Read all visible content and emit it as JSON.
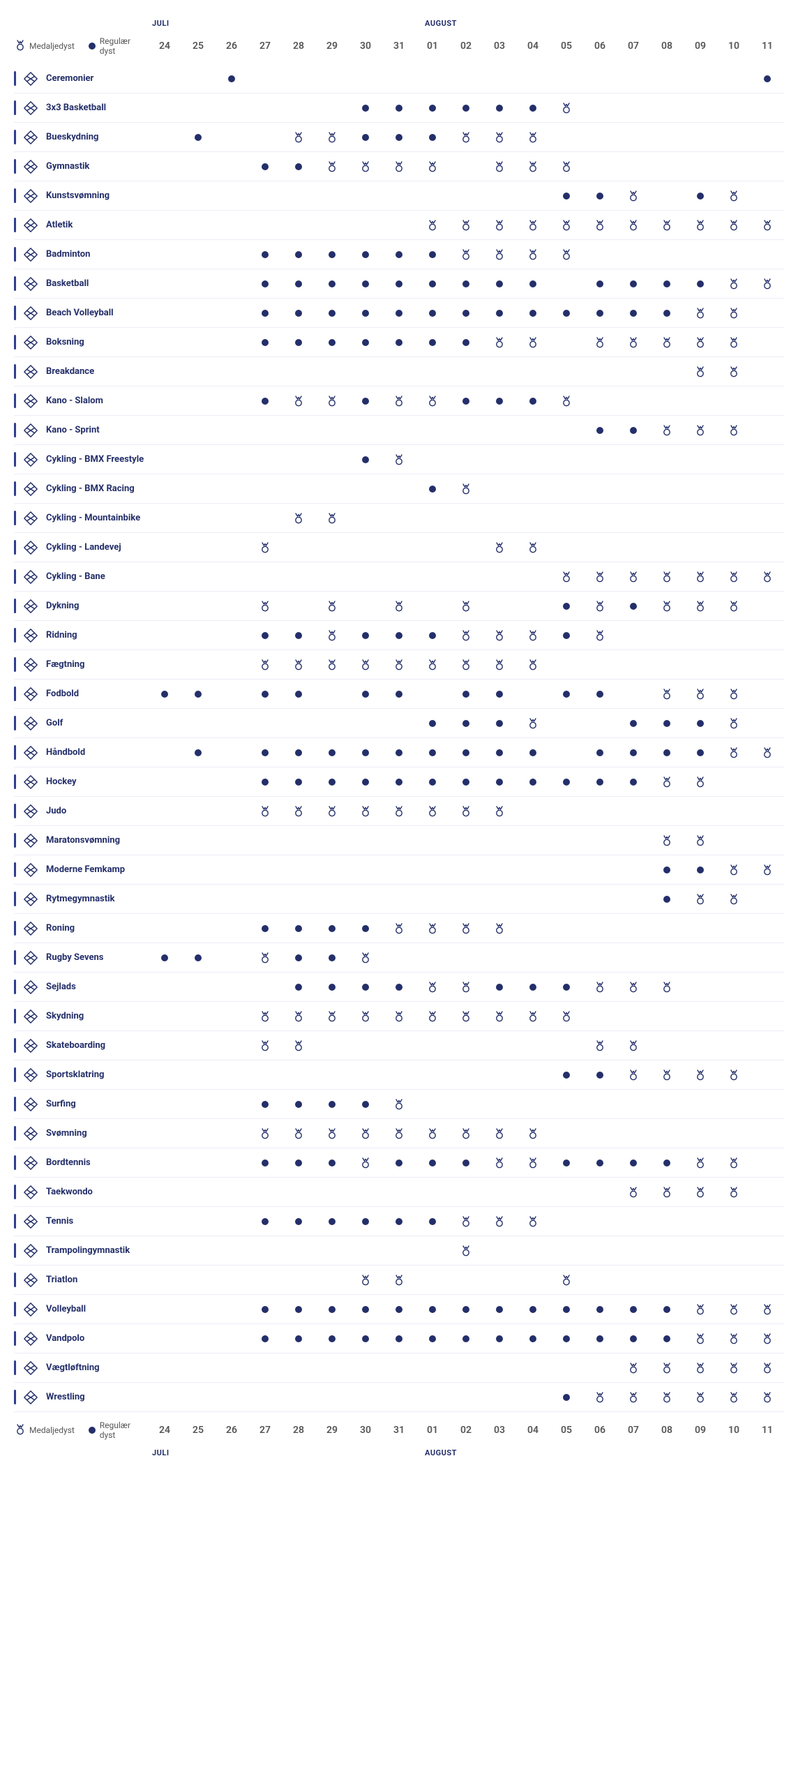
{
  "colors": {
    "primary": "#242f6a",
    "row_border": "#eceef6",
    "text_muted": "#555555",
    "background": "#ffffff"
  },
  "legend": {
    "medal_label": "Medaljedyst",
    "regular_label": "Regulær dyst"
  },
  "months": {
    "left": "JULI",
    "right": "AUGUST"
  },
  "days": [
    "24",
    "25",
    "26",
    "27",
    "28",
    "29",
    "30",
    "31",
    "01",
    "02",
    "03",
    "04",
    "05",
    "06",
    "07",
    "08",
    "09",
    "10",
    "11"
  ],
  "marks": {
    "regular": "dot",
    "medal": "medal",
    "empty": ""
  },
  "sports": [
    {
      "name": "Ceremonier",
      "icon": "spark",
      "row": [
        "",
        "",
        "dot",
        "",
        "",
        "",
        "",
        "",
        "",
        "",
        "",
        "",
        "",
        "",
        "",
        "",
        "",
        "",
        "dot"
      ]
    },
    {
      "name": "3x3 Basketball",
      "icon": "basket3",
      "row": [
        "",
        "",
        "",
        "",
        "",
        "",
        "dot",
        "dot",
        "dot",
        "dot",
        "dot",
        "dot",
        "medal",
        "",
        "",
        "",
        "",
        "",
        ""
      ]
    },
    {
      "name": "Bueskydning",
      "icon": "target",
      "row": [
        "",
        "dot",
        "",
        "",
        "medal",
        "medal",
        "dot",
        "dot",
        "dot",
        "medal",
        "medal",
        "medal",
        "",
        "",
        "",
        "",
        "",
        "",
        ""
      ]
    },
    {
      "name": "Gymnastik",
      "icon": "gym",
      "row": [
        "",
        "",
        "",
        "dot",
        "dot",
        "medal",
        "medal",
        "medal",
        "medal",
        "",
        "medal",
        "medal",
        "medal",
        "",
        "",
        "",
        "",
        "",
        ""
      ]
    },
    {
      "name": "Kunstsvømning",
      "icon": "artswim",
      "row": [
        "",
        "",
        "",
        "",
        "",
        "",
        "",
        "",
        "",
        "",
        "",
        "",
        "dot",
        "dot",
        "medal",
        "",
        "dot",
        "medal",
        ""
      ]
    },
    {
      "name": "Atletik",
      "icon": "track",
      "row": [
        "",
        "",
        "",
        "",
        "",
        "",
        "",
        "",
        "medal",
        "medal",
        "medal",
        "medal",
        "medal",
        "medal",
        "medal",
        "medal",
        "medal",
        "medal",
        "medal"
      ]
    },
    {
      "name": "Badminton",
      "icon": "badminton",
      "row": [
        "",
        "",
        "",
        "dot",
        "dot",
        "dot",
        "dot",
        "dot",
        "dot",
        "medal",
        "medal",
        "medal",
        "medal",
        "",
        "",
        "",
        "",
        "",
        ""
      ]
    },
    {
      "name": "Basketball",
      "icon": "basket",
      "row": [
        "",
        "",
        "",
        "dot",
        "dot",
        "dot",
        "dot",
        "dot",
        "dot",
        "dot",
        "dot",
        "dot",
        "",
        "dot",
        "dot",
        "dot",
        "dot",
        "medal",
        "medal"
      ]
    },
    {
      "name": "Beach Volleyball",
      "icon": "beach",
      "row": [
        "",
        "",
        "",
        "dot",
        "dot",
        "dot",
        "dot",
        "dot",
        "dot",
        "dot",
        "dot",
        "dot",
        "dot",
        "dot",
        "dot",
        "dot",
        "medal",
        "medal",
        ""
      ]
    },
    {
      "name": "Boksning",
      "icon": "boxing",
      "row": [
        "",
        "",
        "",
        "dot",
        "dot",
        "dot",
        "dot",
        "dot",
        "dot",
        "dot",
        "medal",
        "medal",
        "",
        "medal",
        "medal",
        "medal",
        "medal",
        "medal",
        ""
      ]
    },
    {
      "name": "Breakdance",
      "icon": "break",
      "row": [
        "",
        "",
        "",
        "",
        "",
        "",
        "",
        "",
        "",
        "",
        "",
        "",
        "",
        "",
        "",
        "",
        "medal",
        "medal",
        ""
      ]
    },
    {
      "name": "Kano - Slalom",
      "icon": "canoe",
      "row": [
        "",
        "",
        "",
        "dot",
        "medal",
        "medal",
        "dot",
        "medal",
        "medal",
        "dot",
        "dot",
        "dot",
        "medal",
        "",
        "",
        "",
        "",
        "",
        ""
      ]
    },
    {
      "name": "Kano - Sprint",
      "icon": "kayak",
      "row": [
        "",
        "",
        "",
        "",
        "",
        "",
        "",
        "",
        "",
        "",
        "",
        "",
        "",
        "dot",
        "dot",
        "medal",
        "medal",
        "medal",
        ""
      ]
    },
    {
      "name": "Cykling - BMX Freestyle",
      "icon": "bmxfree",
      "row": [
        "",
        "",
        "",
        "",
        "",
        "",
        "dot",
        "medal",
        "",
        "",
        "",
        "",
        "",
        "",
        "",
        "",
        "",
        "",
        ""
      ]
    },
    {
      "name": "Cykling - BMX Racing",
      "icon": "bmxrace",
      "row": [
        "",
        "",
        "",
        "",
        "",
        "",
        "",
        "",
        "dot",
        "medal",
        "",
        "",
        "",
        "",
        "",
        "",
        "",
        "",
        ""
      ]
    },
    {
      "name": "Cykling - Mountainbike",
      "icon": "mtb",
      "row": [
        "",
        "",
        "",
        "",
        "medal",
        "medal",
        "",
        "",
        "",
        "",
        "",
        "",
        "",
        "",
        "",
        "",
        "",
        "",
        ""
      ]
    },
    {
      "name": "Cykling - Landevej",
      "icon": "road",
      "row": [
        "",
        "",
        "",
        "medal",
        "",
        "",
        "",
        "",
        "",
        "",
        "medal",
        "medal",
        "",
        "",
        "",
        "",
        "",
        "",
        ""
      ]
    },
    {
      "name": "Cykling - Bane",
      "icon": "velo",
      "row": [
        "",
        "",
        "",
        "",
        "",
        "",
        "",
        "",
        "",
        "",
        "",
        "",
        "medal",
        "medal",
        "medal",
        "medal",
        "medal",
        "medal",
        "medal"
      ]
    },
    {
      "name": "Dykning",
      "icon": "dive",
      "row": [
        "",
        "",
        "",
        "medal",
        "",
        "medal",
        "",
        "medal",
        "",
        "medal",
        "",
        "",
        "dot",
        "medal",
        "dot",
        "medal",
        "medal",
        "medal",
        ""
      ]
    },
    {
      "name": "Ridning",
      "icon": "horse",
      "row": [
        "",
        "",
        "",
        "dot",
        "dot",
        "medal",
        "dot",
        "dot",
        "dot",
        "medal",
        "medal",
        "medal",
        "dot",
        "medal",
        "",
        "",
        "",
        "",
        ""
      ]
    },
    {
      "name": "Fægtning",
      "icon": "fence",
      "row": [
        "",
        "",
        "",
        "medal",
        "medal",
        "medal",
        "medal",
        "medal",
        "medal",
        "medal",
        "medal",
        "medal",
        "",
        "",
        "",
        "",
        "",
        "",
        ""
      ]
    },
    {
      "name": "Fodbold",
      "icon": "soccer",
      "row": [
        "dot",
        "dot",
        "",
        "dot",
        "dot",
        "",
        "dot",
        "dot",
        "",
        "dot",
        "dot",
        "",
        "dot",
        "dot",
        "",
        "medal",
        "medal",
        "medal",
        ""
      ]
    },
    {
      "name": "Golf",
      "icon": "golf",
      "row": [
        "",
        "",
        "",
        "",
        "",
        "",
        "",
        "",
        "dot",
        "dot",
        "dot",
        "medal",
        "",
        "",
        "dot",
        "dot",
        "dot",
        "medal",
        ""
      ]
    },
    {
      "name": "Håndbold",
      "icon": "hand",
      "row": [
        "",
        "dot",
        "",
        "dot",
        "dot",
        "dot",
        "dot",
        "dot",
        "dot",
        "dot",
        "dot",
        "dot",
        "",
        "dot",
        "dot",
        "dot",
        "dot",
        "medal",
        "medal"
      ]
    },
    {
      "name": "Hockey",
      "icon": "hockey",
      "row": [
        "",
        "",
        "",
        "dot",
        "dot",
        "dot",
        "dot",
        "dot",
        "dot",
        "dot",
        "dot",
        "dot",
        "dot",
        "dot",
        "dot",
        "medal",
        "medal",
        "",
        ""
      ]
    },
    {
      "name": "Judo",
      "icon": "judo",
      "row": [
        "",
        "",
        "",
        "medal",
        "medal",
        "medal",
        "medal",
        "medal",
        "medal",
        "medal",
        "medal",
        "",
        "",
        "",
        "",
        "",
        "",
        "",
        ""
      ]
    },
    {
      "name": "Maratonsvømning",
      "icon": "marswim",
      "row": [
        "",
        "",
        "",
        "",
        "",
        "",
        "",
        "",
        "",
        "",
        "",
        "",
        "",
        "",
        "",
        "medal",
        "medal",
        "",
        ""
      ]
    },
    {
      "name": "Moderne Femkamp",
      "icon": "pent",
      "row": [
        "",
        "",
        "",
        "",
        "",
        "",
        "",
        "",
        "",
        "",
        "",
        "",
        "",
        "",
        "",
        "dot",
        "dot",
        "medal",
        "medal"
      ]
    },
    {
      "name": "Rytmegymnastik",
      "icon": "rhythm",
      "row": [
        "",
        "",
        "",
        "",
        "",
        "",
        "",
        "",
        "",
        "",
        "",
        "",
        "",
        "",
        "",
        "dot",
        "medal",
        "medal",
        ""
      ]
    },
    {
      "name": "Roning",
      "icon": "row",
      "row": [
        "",
        "",
        "",
        "dot",
        "dot",
        "dot",
        "dot",
        "medal",
        "medal",
        "medal",
        "medal",
        "",
        "",
        "",
        "",
        "",
        "",
        "",
        ""
      ]
    },
    {
      "name": "Rugby Sevens",
      "icon": "rugby",
      "row": [
        "dot",
        "dot",
        "",
        "medal",
        "dot",
        "dot",
        "medal",
        "",
        "",
        "",
        "",
        "",
        "",
        "",
        "",
        "",
        "",
        "",
        ""
      ]
    },
    {
      "name": "Sejlads",
      "icon": "sail",
      "row": [
        "",
        "",
        "",
        "",
        "dot",
        "dot",
        "dot",
        "dot",
        "medal",
        "medal",
        "dot",
        "dot",
        "dot",
        "medal",
        "medal",
        "medal",
        "",
        "",
        ""
      ]
    },
    {
      "name": "Skydning",
      "icon": "shoot",
      "row": [
        "",
        "",
        "",
        "medal",
        "medal",
        "medal",
        "medal",
        "medal",
        "medal",
        "medal",
        "medal",
        "medal",
        "medal",
        "",
        "",
        "",
        "",
        "",
        ""
      ]
    },
    {
      "name": "Skateboarding",
      "icon": "skate",
      "row": [
        "",
        "",
        "",
        "medal",
        "medal",
        "",
        "",
        "",
        "",
        "",
        "",
        "",
        "",
        "medal",
        "medal",
        "",
        "",
        "",
        ""
      ]
    },
    {
      "name": "Sportsklatring",
      "icon": "climb",
      "row": [
        "",
        "",
        "",
        "",
        "",
        "",
        "",
        "",
        "",
        "",
        "",
        "",
        "dot",
        "dot",
        "medal",
        "medal",
        "medal",
        "medal",
        ""
      ]
    },
    {
      "name": "Surfing",
      "icon": "surf",
      "row": [
        "",
        "",
        "",
        "dot",
        "dot",
        "dot",
        "dot",
        "medal",
        "",
        "",
        "",
        "",
        "",
        "",
        "",
        "",
        "",
        "",
        ""
      ]
    },
    {
      "name": "Svømning",
      "icon": "swim",
      "row": [
        "",
        "",
        "",
        "medal",
        "medal",
        "medal",
        "medal",
        "medal",
        "medal",
        "medal",
        "medal",
        "medal",
        "",
        "",
        "",
        "",
        "",
        "",
        ""
      ]
    },
    {
      "name": "Bordtennis",
      "icon": "table",
      "row": [
        "",
        "",
        "",
        "dot",
        "dot",
        "dot",
        "medal",
        "dot",
        "dot",
        "dot",
        "medal",
        "medal",
        "dot",
        "dot",
        "dot",
        "dot",
        "medal",
        "medal",
        ""
      ]
    },
    {
      "name": "Taekwondo",
      "icon": "tkd",
      "row": [
        "",
        "",
        "",
        "",
        "",
        "",
        "",
        "",
        "",
        "",
        "",
        "",
        "",
        "",
        "medal",
        "medal",
        "medal",
        "medal",
        ""
      ]
    },
    {
      "name": "Tennis",
      "icon": "tennis",
      "row": [
        "",
        "",
        "",
        "dot",
        "dot",
        "dot",
        "dot",
        "dot",
        "dot",
        "medal",
        "medal",
        "medal",
        "",
        "",
        "",
        "",
        "",
        "",
        ""
      ]
    },
    {
      "name": "Trampolingymnastik",
      "icon": "tramp",
      "row": [
        "",
        "",
        "",
        "",
        "",
        "",
        "",
        "",
        "",
        "medal",
        "",
        "",
        "",
        "",
        "",
        "",
        "",
        "",
        ""
      ]
    },
    {
      "name": "Triatlon",
      "icon": "tri",
      "row": [
        "",
        "",
        "",
        "",
        "",
        "",
        "medal",
        "medal",
        "",
        "",
        "",
        "",
        "medal",
        "",
        "",
        "",
        "",
        "",
        ""
      ]
    },
    {
      "name": "Volleyball",
      "icon": "volley",
      "row": [
        "",
        "",
        "",
        "dot",
        "dot",
        "dot",
        "dot",
        "dot",
        "dot",
        "dot",
        "dot",
        "dot",
        "dot",
        "dot",
        "dot",
        "dot",
        "medal",
        "medal",
        "medal"
      ]
    },
    {
      "name": "Vandpolo",
      "icon": "polo",
      "row": [
        "",
        "",
        "",
        "dot",
        "dot",
        "dot",
        "dot",
        "dot",
        "dot",
        "dot",
        "dot",
        "dot",
        "dot",
        "dot",
        "dot",
        "dot",
        "medal",
        "medal",
        "medal"
      ]
    },
    {
      "name": "Vægtløftning",
      "icon": "lift",
      "row": [
        "",
        "",
        "",
        "",
        "",
        "",
        "",
        "",
        "",
        "",
        "",
        "",
        "",
        "",
        "medal",
        "medal",
        "medal",
        "medal",
        "medal"
      ]
    },
    {
      "name": "Wrestling",
      "icon": "wrestle",
      "row": [
        "",
        "",
        "",
        "",
        "",
        "",
        "",
        "",
        "",
        "",
        "",
        "",
        "dot",
        "medal",
        "medal",
        "medal",
        "medal",
        "medal",
        "medal"
      ]
    }
  ]
}
